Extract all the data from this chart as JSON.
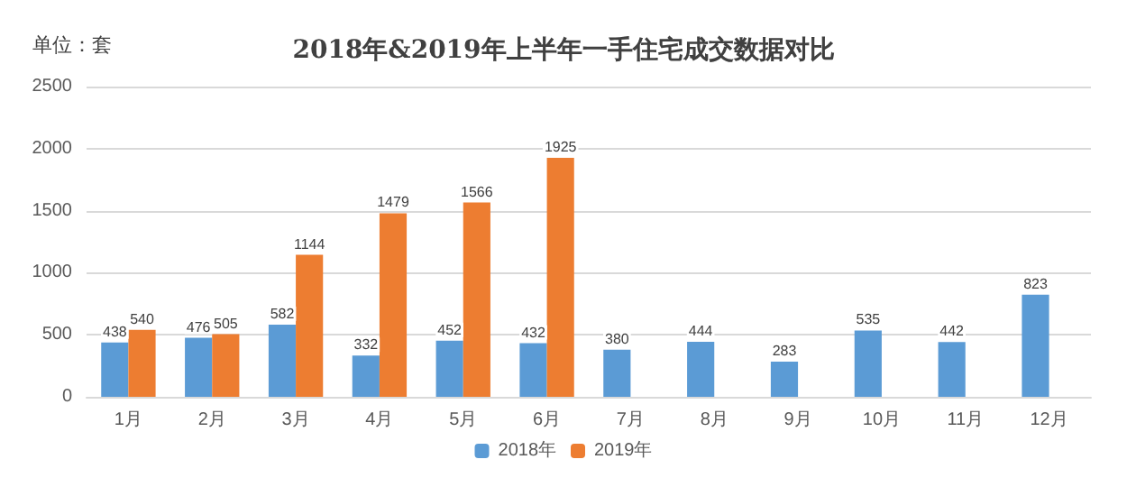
{
  "chart_data": {
    "type": "bar",
    "title": "2018年&2019年上半年一手住宅成交数据对比",
    "annotations": [
      "单位：套"
    ],
    "categories": [
      "1月",
      "2月",
      "3月",
      "4月",
      "5月",
      "6月",
      "7月",
      "8月",
      "9月",
      "10月",
      "11月",
      "12月"
    ],
    "series": [
      {
        "name": "2018年",
        "color": "#5b9bd5",
        "values": [
          438,
          476,
          582,
          332,
          452,
          432,
          380,
          444,
          283,
          535,
          442,
          823
        ]
      },
      {
        "name": "2019年",
        "color": "#ed7d31",
        "values": [
          540,
          505,
          1144,
          1479,
          1566,
          1925,
          null,
          null,
          null,
          null,
          null,
          null
        ]
      }
    ],
    "ylim": [
      0,
      2500
    ],
    "yticks": [
      0,
      500,
      1000,
      1500,
      2000,
      2500
    ],
    "grid": "y",
    "legend": "bottom",
    "data_labels": true
  }
}
